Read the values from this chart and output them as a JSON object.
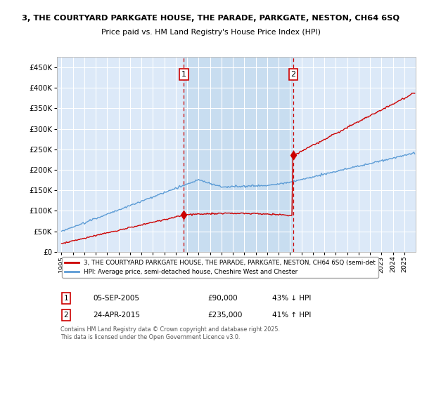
{
  "title": "3, THE COURTYARD PARKGATE HOUSE, THE PARADE, PARKGATE, NESTON, CH64 6SQ",
  "subtitle": "Price paid vs. HM Land Registry's House Price Index (HPI)",
  "background_color": "#ffffff",
  "plot_bg_color": "#dce9f8",
  "highlight_bg_color": "#c8ddf0",
  "grid_color": "#ffffff",
  "sale1_price": 90000,
  "sale1_label": "1",
  "sale1_hpi_text": "43% ↓ HPI",
  "sale1_display": "05-SEP-2005",
  "sale1_year": 2005.71,
  "sale2_price": 235000,
  "sale2_label": "2",
  "sale2_hpi_text": "41% ↑ HPI",
  "sale2_display": "24-APR-2015",
  "sale2_year": 2015.29,
  "legend_line1": "3, THE COURTYARD PARKGATE HOUSE, THE PARADE, PARKGATE, NESTON, CH64 6SQ (semi-det",
  "legend_line2": "HPI: Average price, semi-detached house, Cheshire West and Chester",
  "footer": "Contains HM Land Registry data © Crown copyright and database right 2025.\nThis data is licensed under the Open Government Licence v3.0.",
  "line_color_price": "#cc0000",
  "line_color_hpi": "#5b9bd5",
  "vline_color": "#cc0000",
  "ylim": [
    0,
    475000
  ],
  "yticks": [
    0,
    50000,
    100000,
    150000,
    200000,
    250000,
    300000,
    350000,
    400000,
    450000
  ],
  "ytick_labels": [
    "£0",
    "£50K",
    "£100K",
    "£150K",
    "£200K",
    "£250K",
    "£300K",
    "£350K",
    "£400K",
    "£450K"
  ],
  "xlim_left": 1994.6,
  "xlim_right": 2026.0
}
